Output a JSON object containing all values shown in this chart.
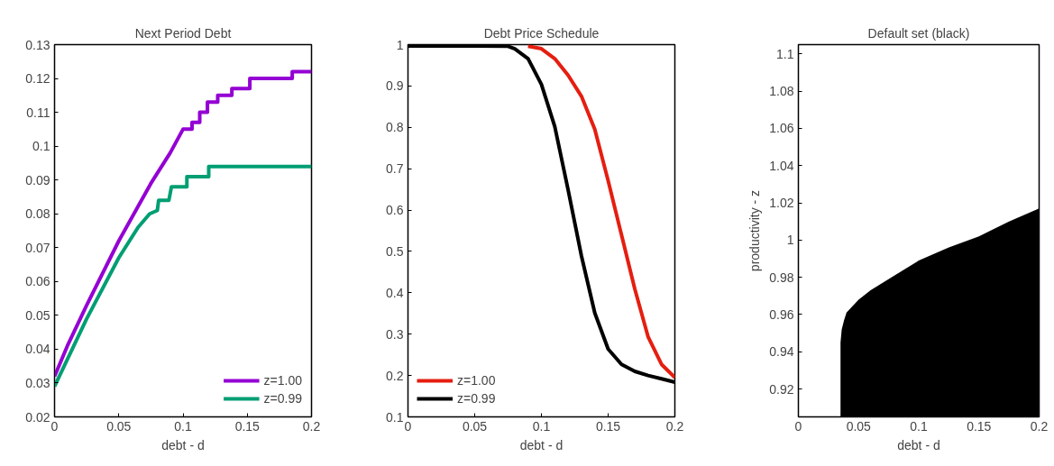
{
  "chart_data": [
    {
      "type": "line",
      "title": "Next Period Debt",
      "xlabel": "debt - d",
      "xlim": [
        0,
        0.2
      ],
      "xticks": [
        0,
        0.05,
        0.1,
        0.15,
        0.2
      ],
      "ylim": [
        0.02,
        0.13
      ],
      "yticks": [
        0.02,
        0.03,
        0.04,
        0.05,
        0.06,
        0.07,
        0.08,
        0.09,
        0.1,
        0.11,
        0.12,
        0.13
      ],
      "grid": false,
      "legend": "bottom right",
      "series": [
        {
          "name": "z=1.00",
          "color": "#9400d3",
          "x": [
            0,
            0.01,
            0.025,
            0.05,
            0.075,
            0.09,
            0.1,
            0.107,
            0.107,
            0.113,
            0.113,
            0.119,
            0.119,
            0.127,
            0.127,
            0.138,
            0.138,
            0.152,
            0.152,
            0.185,
            0.185,
            0.2
          ],
          "values": [
            0.032,
            0.041,
            0.053,
            0.072,
            0.089,
            0.098,
            0.105,
            0.105,
            0.107,
            0.107,
            0.11,
            0.11,
            0.113,
            0.113,
            0.115,
            0.115,
            0.117,
            0.117,
            0.12,
            0.12,
            0.122,
            0.122
          ]
        },
        {
          "name": "z=0.99",
          "color": "#009e73",
          "x": [
            0,
            0.01,
            0.025,
            0.05,
            0.065,
            0.074,
            0.08,
            0.081,
            0.089,
            0.091,
            0.103,
            0.103,
            0.12,
            0.12,
            0.2
          ],
          "values": [
            0.029,
            0.037,
            0.049,
            0.067,
            0.076,
            0.08,
            0.081,
            0.084,
            0.084,
            0.088,
            0.088,
            0.091,
            0.091,
            0.094,
            0.094
          ]
        }
      ]
    },
    {
      "type": "line",
      "title": "Debt Price Schedule",
      "xlabel": "debt - d",
      "xlim": [
        0,
        0.2
      ],
      "xticks": [
        0,
        0.05,
        0.1,
        0.15,
        0.2
      ],
      "ylim": [
        0.1,
        1
      ],
      "yticks": [
        0.1,
        0.2,
        0.3,
        0.4,
        0.5,
        0.6,
        0.7,
        0.8,
        0.9,
        1
      ],
      "grid": false,
      "legend": "bottom left",
      "series": [
        {
          "name": "z=1.00",
          "color": "#e51e10",
          "x": [
            0.09,
            0.1,
            0.11,
            0.12,
            0.13,
            0.14,
            0.15,
            0.16,
            0.17,
            0.18,
            0.19,
            0.2
          ],
          "values": [
            0.996,
            0.99,
            0.966,
            0.926,
            0.875,
            0.795,
            0.671,
            0.54,
            0.409,
            0.293,
            0.227,
            0.195
          ]
        },
        {
          "name": "z=0.99",
          "color": "#000000",
          "x": [
            0,
            0.05,
            0.075,
            0.08,
            0.09,
            0.1,
            0.11,
            0.12,
            0.13,
            0.14,
            0.15,
            0.16,
            0.17,
            0.18,
            0.19,
            0.2
          ],
          "values": [
            0.997,
            0.997,
            0.996,
            0.99,
            0.966,
            0.904,
            0.802,
            0.649,
            0.489,
            0.351,
            0.264,
            0.227,
            0.21,
            0.2,
            0.192,
            0.184
          ]
        }
      ]
    },
    {
      "type": "area",
      "title": "Default set (black)",
      "xlabel": "debt - d",
      "ylabel": "productivity - z",
      "xlim": [
        0,
        0.2
      ],
      "xticks": [
        0,
        0.05,
        0.1,
        0.15,
        0.2
      ],
      "ylim": [
        0.905,
        1.105
      ],
      "yticks": [
        0.92,
        0.94,
        0.96,
        0.98,
        1,
        1.02,
        1.04,
        1.06,
        1.08,
        1.1
      ],
      "grid": false,
      "series": [
        {
          "color": "#000000",
          "x": [
            0.035,
            0.036,
            0.038,
            0.04,
            0.05,
            0.06,
            0.08,
            0.1,
            0.125,
            0.15,
            0.175,
            0.2
          ],
          "values": [
            0.945,
            0.952,
            0.957,
            0.961,
            0.968,
            0.973,
            0.981,
            0.989,
            0.996,
            1.002,
            1.01,
            1.017
          ]
        }
      ]
    }
  ]
}
